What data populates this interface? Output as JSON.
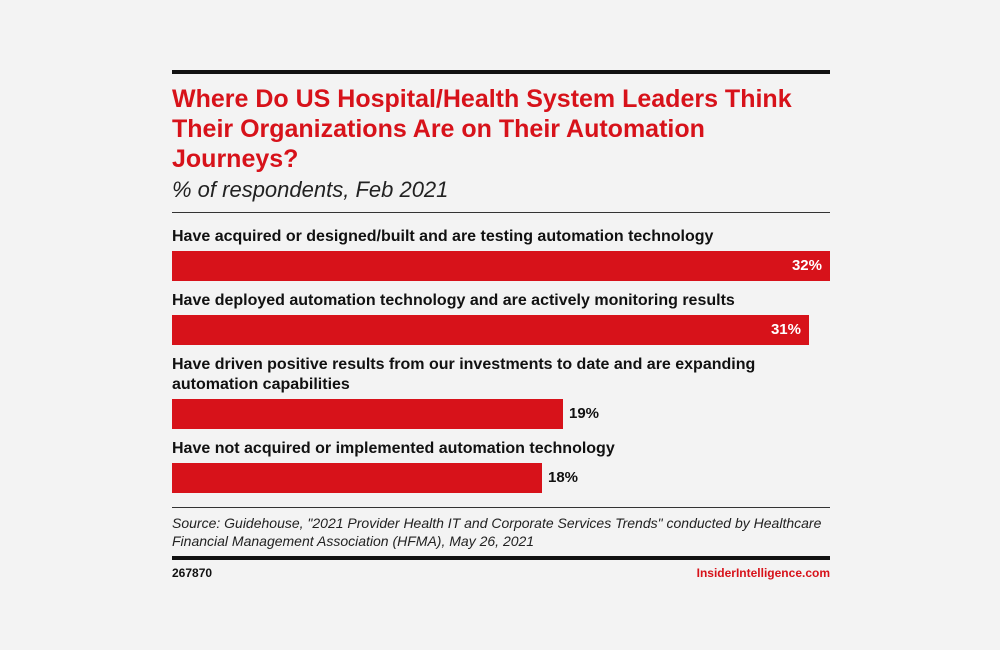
{
  "header": {
    "title": "Where Do US Hospital/Health System Leaders Think Their Organizations Are on Their Automation Journeys?",
    "subtitle": "% of respondents, Feb 2021"
  },
  "chart_data": {
    "type": "bar",
    "orientation": "horizontal",
    "title": "Where Do US Hospital/Health System Leaders Think Their Organizations Are on Their Automation Journeys?",
    "subtitle": "% of respondents, Feb 2021",
    "categories": [
      "Have acquired or designed/built and are testing automation technology",
      "Have deployed automation technology and are actively monitoring results",
      "Have driven positive results from our investments to date and are expanding automation capabilities",
      "Have not acquired or implemented automation technology"
    ],
    "values": [
      32,
      31,
      19,
      18
    ],
    "value_labels": [
      "32%",
      "31%",
      "19%",
      "18%"
    ],
    "xlim": [
      0,
      32
    ],
    "grid": false,
    "legend": "none",
    "bar_color": "#d7121a"
  },
  "footer": {
    "source": "Source: Guidehouse, \"2021 Provider Health IT and Corporate Services Trends\" conducted by Healthcare Financial Management Association (HFMA), May 26, 2021",
    "chart_id": "267870",
    "brand": "InsiderIntelligence.com"
  },
  "colors": {
    "accent": "#d7121a",
    "text": "#111111",
    "background": "#f3f3f3"
  }
}
